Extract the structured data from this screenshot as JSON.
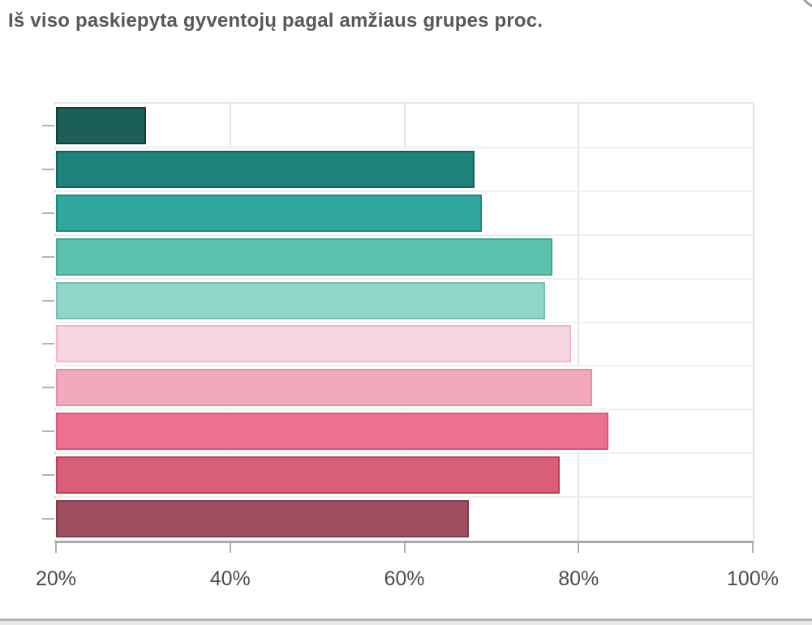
{
  "header": {
    "title": "Iš viso paskiepyta gyventojų pagal amžiaus grupes proc."
  },
  "chart_data": {
    "type": "bar",
    "orientation": "horizontal",
    "title": "Iš viso paskiepyta gyventojų pagal amžiaus grupes proc.",
    "xlabel": "",
    "ylabel": "",
    "x_min": 20,
    "x_max": 100,
    "x_ticks": [
      20,
      40,
      60,
      80,
      100
    ],
    "x_tick_labels": [
      "20%",
      "40%",
      "60%",
      "80%",
      "100%"
    ],
    "y_tick_labels": [
      "",
      "",
      "",
      "",
      "",
      "",
      "",
      "",
      "",
      ""
    ],
    "values_pct": [
      30.3,
      68.1,
      68.9,
      77.0,
      76.2,
      79.1,
      81.6,
      83.4,
      77.8,
      67.4
    ],
    "grid": "on",
    "legend": "none",
    "bars": [
      {
        "value": 30.3,
        "fill": "#1B5F58",
        "stroke": "#123F3B"
      },
      {
        "value": 68.1,
        "fill": "#1E837B",
        "stroke": "#156059"
      },
      {
        "value": 68.9,
        "fill": "#30A89D",
        "stroke": "#1F877E"
      },
      {
        "value": 77.0,
        "fill": "#5CC1AD",
        "stroke": "#45A794"
      },
      {
        "value": 76.2,
        "fill": "#91D5C6",
        "stroke": "#74BFAD"
      },
      {
        "value": 79.1,
        "fill": "#F8D6DF",
        "stroke": "#F0B6C6"
      },
      {
        "value": 81.6,
        "fill": "#F3A9BD",
        "stroke": "#EB8CA7"
      },
      {
        "value": 83.4,
        "fill": "#EE7090",
        "stroke": "#E25677"
      },
      {
        "value": 77.8,
        "fill": "#D85F77",
        "stroke": "#C04058"
      },
      {
        "value": 67.4,
        "fill": "#A04F60",
        "stroke": "#7F3B4A"
      }
    ],
    "style": {
      "axis_line_color": "#a9a9a9",
      "grid_color": "#e4e4e4",
      "row_separator_color": "#efefef",
      "tick_color": "#b0b0b0",
      "tick_label_color": "#4a4b4d",
      "title_color": "#57585a"
    }
  }
}
